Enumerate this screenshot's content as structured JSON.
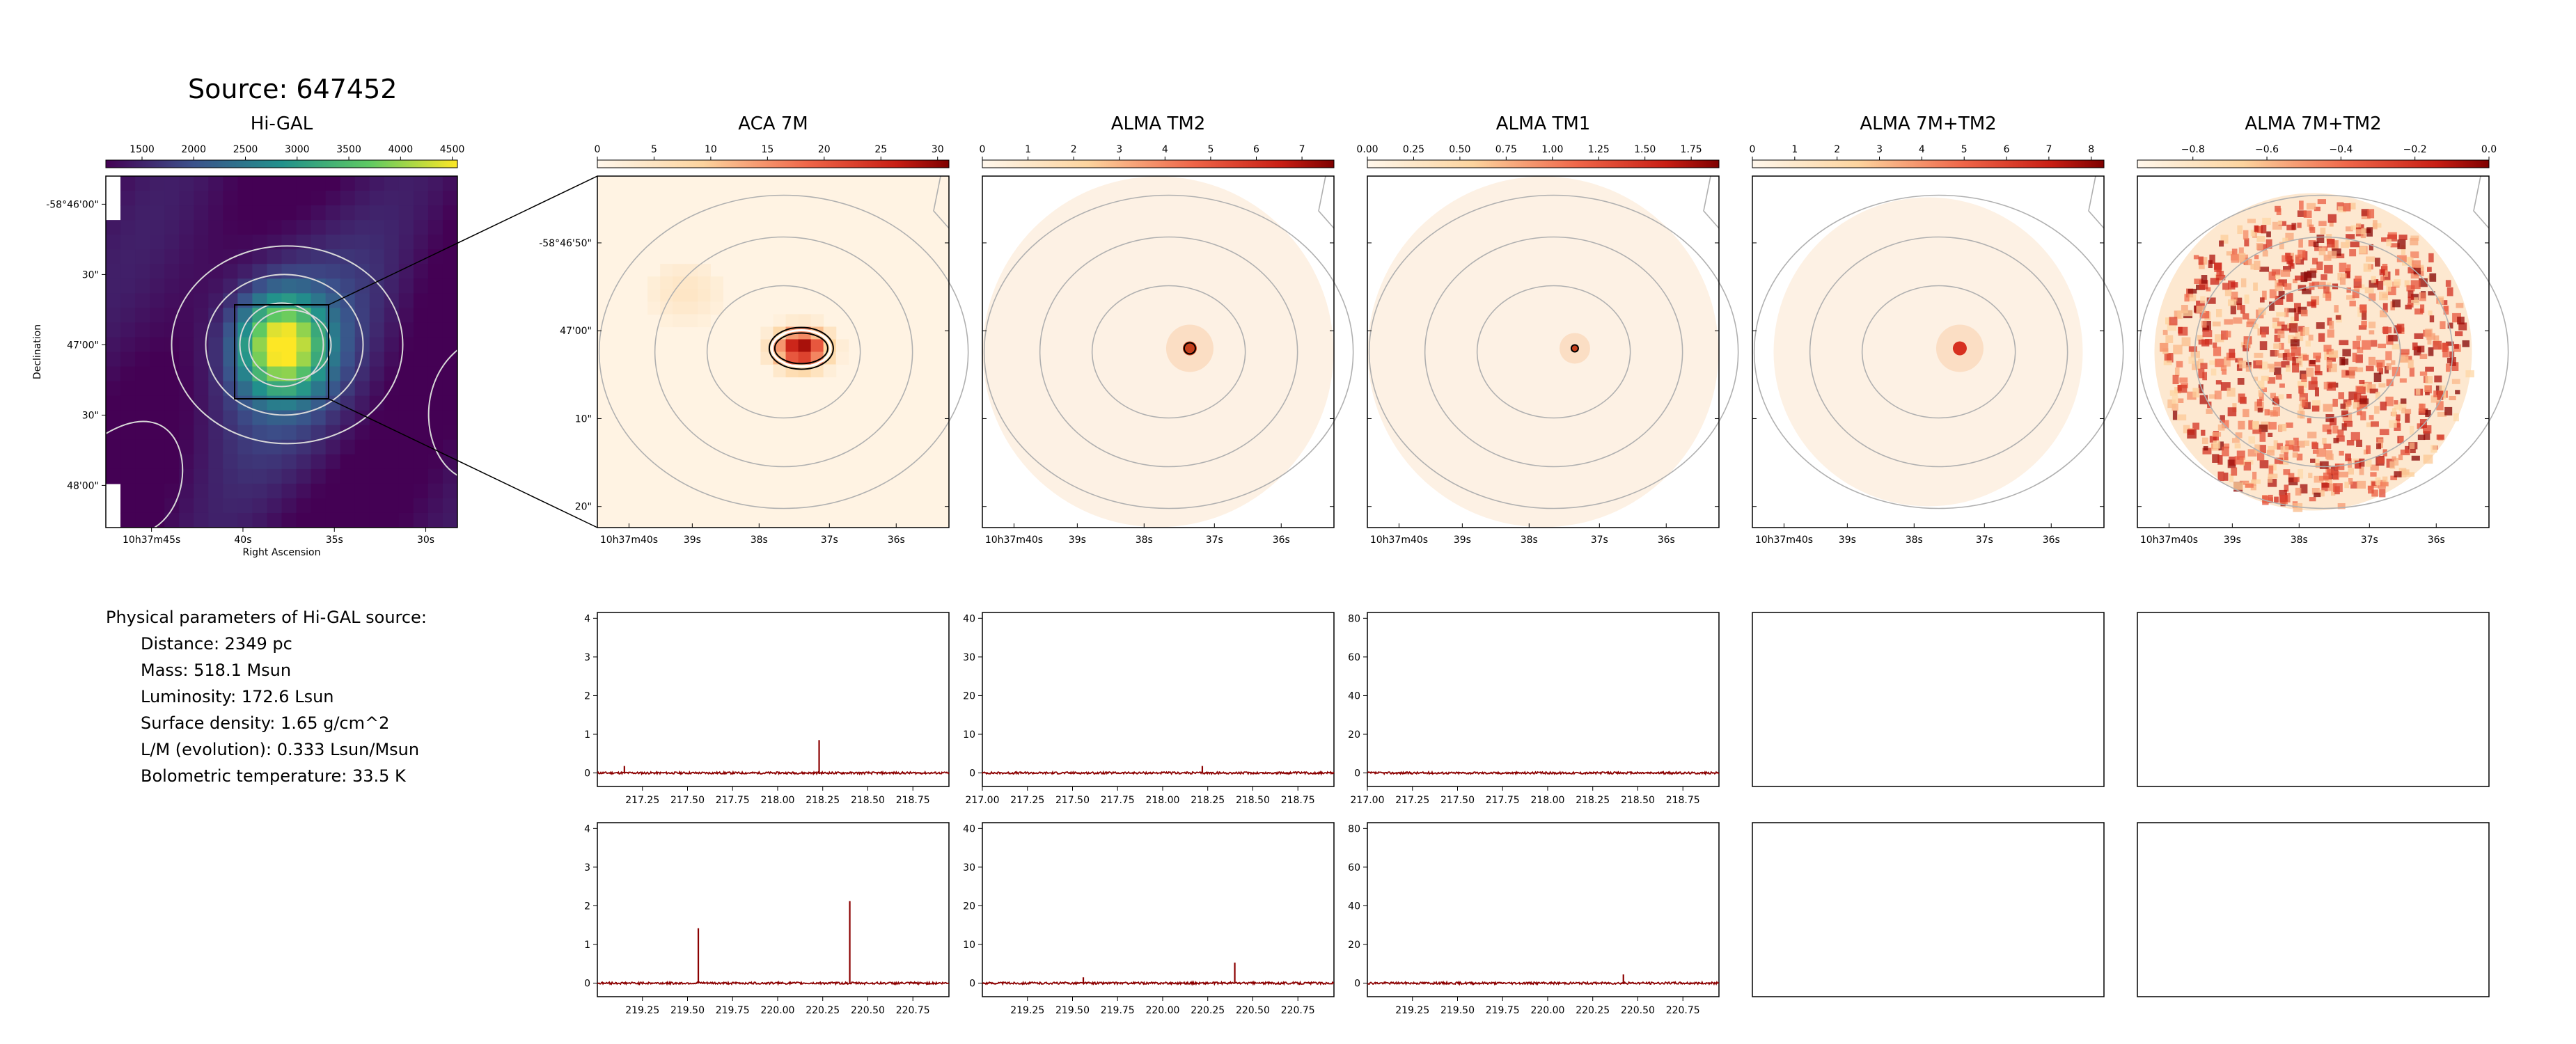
{
  "source_title": "Source: 647452",
  "parameters": {
    "heading": "Physical parameters of Hi-GAL source:",
    "lines": [
      "Distance: 2349 pc",
      "Mass: 518.1 Msun",
      "Luminosity: 172.6 Lsun",
      "Surface density: 1.65 g/cm^2",
      "L/M (evolution): 0.333 Lsun/Msun",
      "Bolometric temperature: 33.5 K"
    ]
  },
  "colors": {
    "hot_map": "#f8e0c6",
    "viridis": "#40287a",
    "spectrum": "#8b0000",
    "contour": "#b0b0b0"
  },
  "chart_data": [
    {
      "type": "heatmap",
      "title": "Hi-GAL",
      "colormap": "viridis",
      "colorbar_ticks": [
        "1500",
        "2000",
        "2500",
        "3000",
        "3500",
        "4000",
        "4500"
      ],
      "colorbar_range": [
        1150,
        4550
      ],
      "xlabel": "Right Ascension",
      "ylabel": "Declination",
      "x_ticks": [
        "10h37m45s",
        "40s",
        "35s",
        "30s"
      ],
      "y_ticks": [
        "-58°46'00\"",
        "30\"",
        "47'00\"",
        "30\"",
        "48'00\""
      ]
    },
    {
      "type": "heatmap",
      "title": "ACA 7M",
      "colormap": "OrRd",
      "colorbar_ticks": [
        "0",
        "5",
        "10",
        "15",
        "20",
        "25",
        "30"
      ],
      "colorbar_range": [
        0,
        31
      ],
      "x_ticks": [
        "10h37m40s",
        "39s",
        "38s",
        "37s",
        "36s"
      ],
      "y_ticks": [
        "-58°46'50\"",
        "47'00\"",
        "10\"",
        "20\""
      ]
    },
    {
      "type": "heatmap",
      "title": "ALMA TM2",
      "colormap": "OrRd",
      "colorbar_ticks": [
        "0",
        "1",
        "2",
        "3",
        "4",
        "5",
        "6",
        "7"
      ],
      "colorbar_range": [
        0,
        7.7
      ],
      "x_ticks": [
        "10h37m40s",
        "39s",
        "38s",
        "37s",
        "36s"
      ]
    },
    {
      "type": "heatmap",
      "title": "ALMA TM1",
      "colormap": "OrRd",
      "colorbar_ticks": [
        "0.00",
        "0.25",
        "0.50",
        "0.75",
        "1.00",
        "1.25",
        "1.50",
        "1.75"
      ],
      "colorbar_range": [
        0,
        1.9
      ],
      "x_ticks": [
        "10h37m40s",
        "39s",
        "38s",
        "37s",
        "36s"
      ]
    },
    {
      "type": "heatmap",
      "title": "ALMA 7M+TM2",
      "colormap": "OrRd",
      "colorbar_ticks": [
        "0",
        "1",
        "2",
        "3",
        "4",
        "5",
        "6",
        "7",
        "8"
      ],
      "colorbar_range": [
        0,
        8.3
      ],
      "x_ticks": [
        "10h37m40s",
        "39s",
        "38s",
        "37s",
        "36s"
      ]
    },
    {
      "type": "heatmap",
      "title": "ALMA 7M+TM2",
      "colormap": "OrRd",
      "colorbar_ticks": [
        "−0.8",
        "−0.6",
        "−0.4",
        "−0.2",
        "0.0"
      ],
      "colorbar_range": [
        -0.95,
        0.0
      ],
      "x_ticks": [
        "10h37m40s",
        "39s",
        "38s",
        "37s",
        "36s"
      ]
    },
    {
      "type": "line",
      "panel": "spectrum-row1-col1",
      "xlim": [
        217.0,
        218.95
      ],
      "ylim": [
        -0.35,
        4.15
      ],
      "x_ticks": [
        "217.25",
        "217.50",
        "217.75",
        "218.00",
        "218.25",
        "218.50",
        "218.75"
      ],
      "y_ticks": [
        "0",
        "1",
        "2",
        "3",
        "4"
      ],
      "peaks": [
        {
          "x": 217.15,
          "y": 0.18
        },
        {
          "x": 218.23,
          "y": 0.85
        }
      ]
    },
    {
      "type": "line",
      "panel": "spectrum-row1-col2",
      "xlim": [
        217.0,
        218.95
      ],
      "ylim": [
        -3.5,
        41.5
      ],
      "x_ticks": [
        "217.00",
        "217.25",
        "217.50",
        "217.75",
        "218.00",
        "218.25",
        "218.50",
        "218.75"
      ],
      "y_ticks": [
        "0",
        "10",
        "20",
        "30",
        "40"
      ],
      "peaks": [
        {
          "x": 218.22,
          "y": 1.8
        }
      ]
    },
    {
      "type": "line",
      "panel": "spectrum-row1-col3",
      "xlim": [
        217.0,
        218.95
      ],
      "ylim": [
        -7,
        83
      ],
      "x_ticks": [
        "217.00",
        "217.25",
        "217.50",
        "217.75",
        "218.00",
        "218.25",
        "218.50",
        "218.75"
      ],
      "y_ticks": [
        "0",
        "20",
        "40",
        "60",
        "80"
      ],
      "peaks": []
    },
    {
      "type": "line",
      "panel": "spectrum-row2-col1",
      "xlim": [
        219.0,
        220.95
      ],
      "ylim": [
        -0.35,
        4.15
      ],
      "x_ticks": [
        "219.25",
        "219.50",
        "219.75",
        "220.00",
        "220.25",
        "220.50",
        "220.75"
      ],
      "y_ticks": [
        "0",
        "1",
        "2",
        "3",
        "4"
      ],
      "peaks": [
        {
          "x": 219.56,
          "y": 1.42
        },
        {
          "x": 220.4,
          "y": 2.12
        }
      ]
    },
    {
      "type": "line",
      "panel": "spectrum-row2-col2",
      "xlim": [
        219.0,
        220.95
      ],
      "ylim": [
        -3.5,
        41.5
      ],
      "x_ticks": [
        "219.25",
        "219.50",
        "219.75",
        "220.00",
        "220.25",
        "220.50",
        "220.75"
      ],
      "y_ticks": [
        "0",
        "10",
        "20",
        "30",
        "40"
      ],
      "peaks": [
        {
          "x": 219.56,
          "y": 1.5
        },
        {
          "x": 220.4,
          "y": 5.3
        }
      ]
    },
    {
      "type": "line",
      "panel": "spectrum-row2-col3",
      "xlim": [
        219.0,
        220.95
      ],
      "ylim": [
        -7,
        83
      ],
      "x_ticks": [
        "219.25",
        "219.50",
        "219.75",
        "220.00",
        "220.25",
        "220.50",
        "220.75"
      ],
      "y_ticks": [
        "0",
        "20",
        "40",
        "60",
        "80"
      ],
      "peaks": [
        {
          "x": 220.42,
          "y": 4.5
        }
      ]
    }
  ]
}
